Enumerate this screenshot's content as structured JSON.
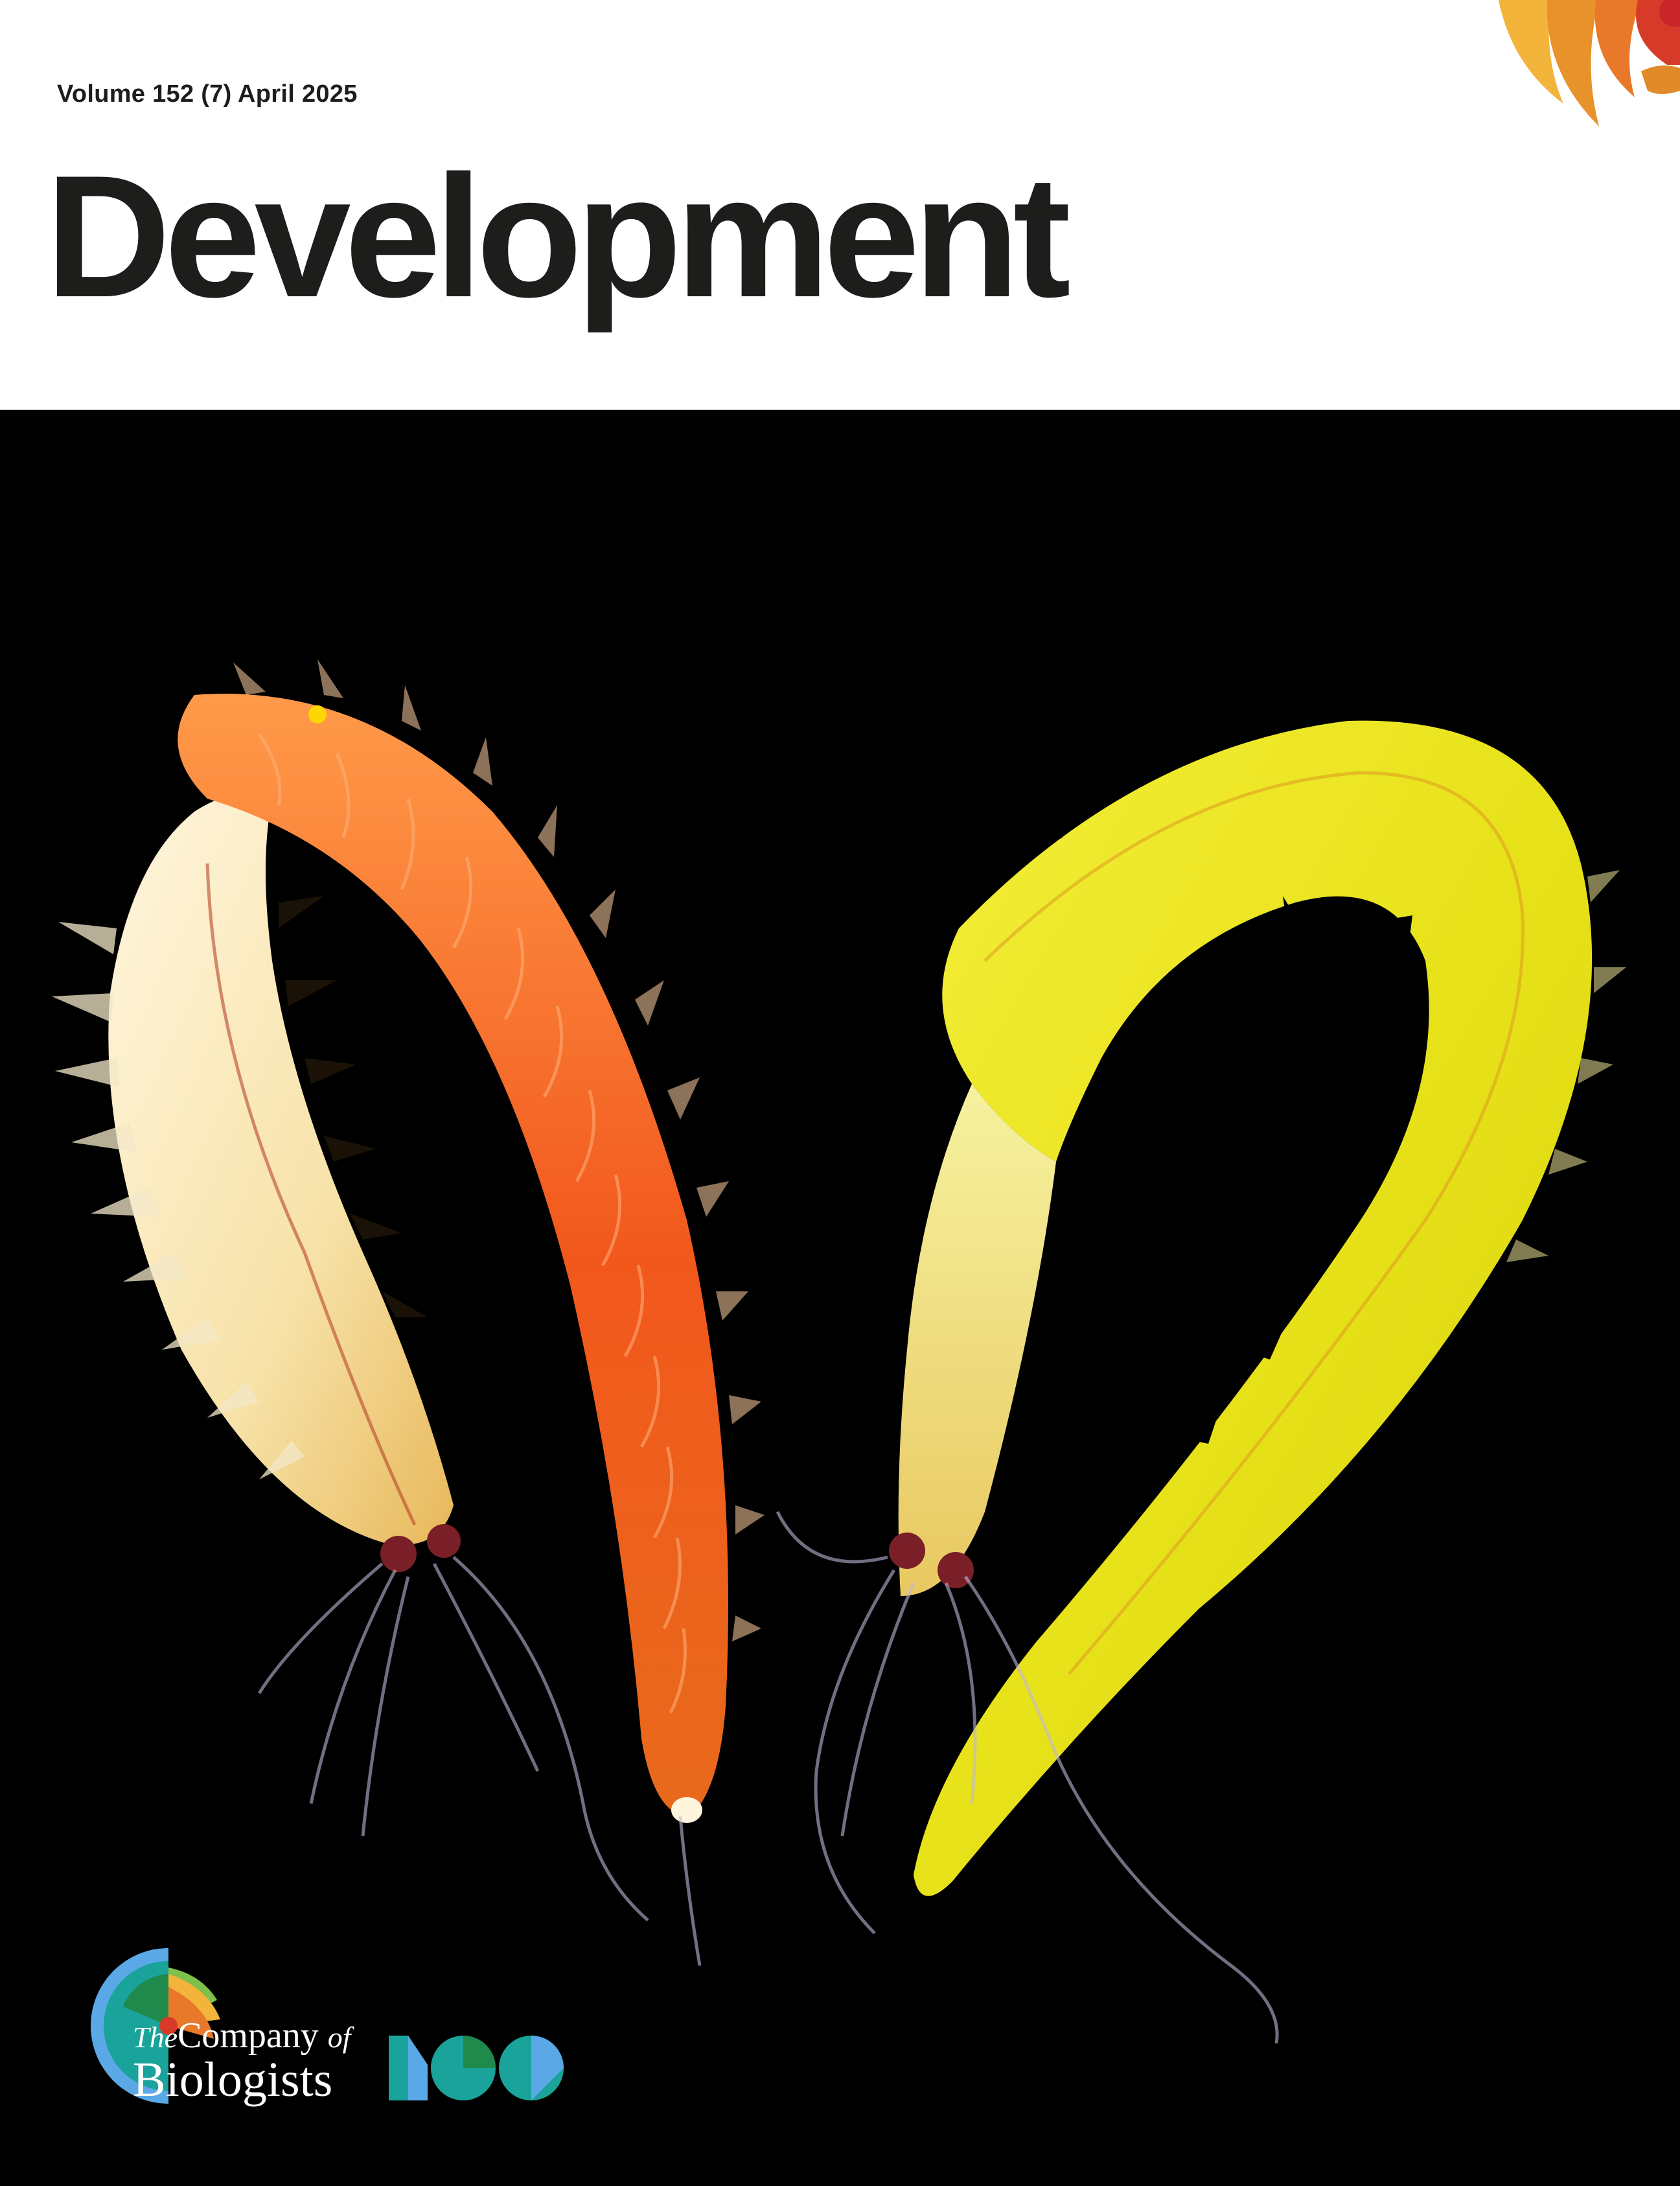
{
  "cover": {
    "issue_line": "Volume 152 (7) April  2025",
    "journal_title": "Development",
    "corner_emblem_icon": "sunburst-icon",
    "cover_image_description_icon": "annelid-worms-image",
    "publisher": {
      "the": "The",
      "company": "Company",
      "of": "of",
      "biologists": "Biologists",
      "logo_icon": "company-of-biologists-logo-icon",
      "centenary_icon": "centenary-100-icon"
    },
    "colors": {
      "title_text": "#1d1d1b",
      "background_panel": "#000000",
      "emblem_orange": "#e8792b",
      "emblem_red": "#d73a28",
      "emblem_yellow": "#f2b43a",
      "logo_teal": "#1aa39a",
      "logo_blue": "#5aa9e6",
      "logo_green": "#1f8a4c"
    }
  }
}
